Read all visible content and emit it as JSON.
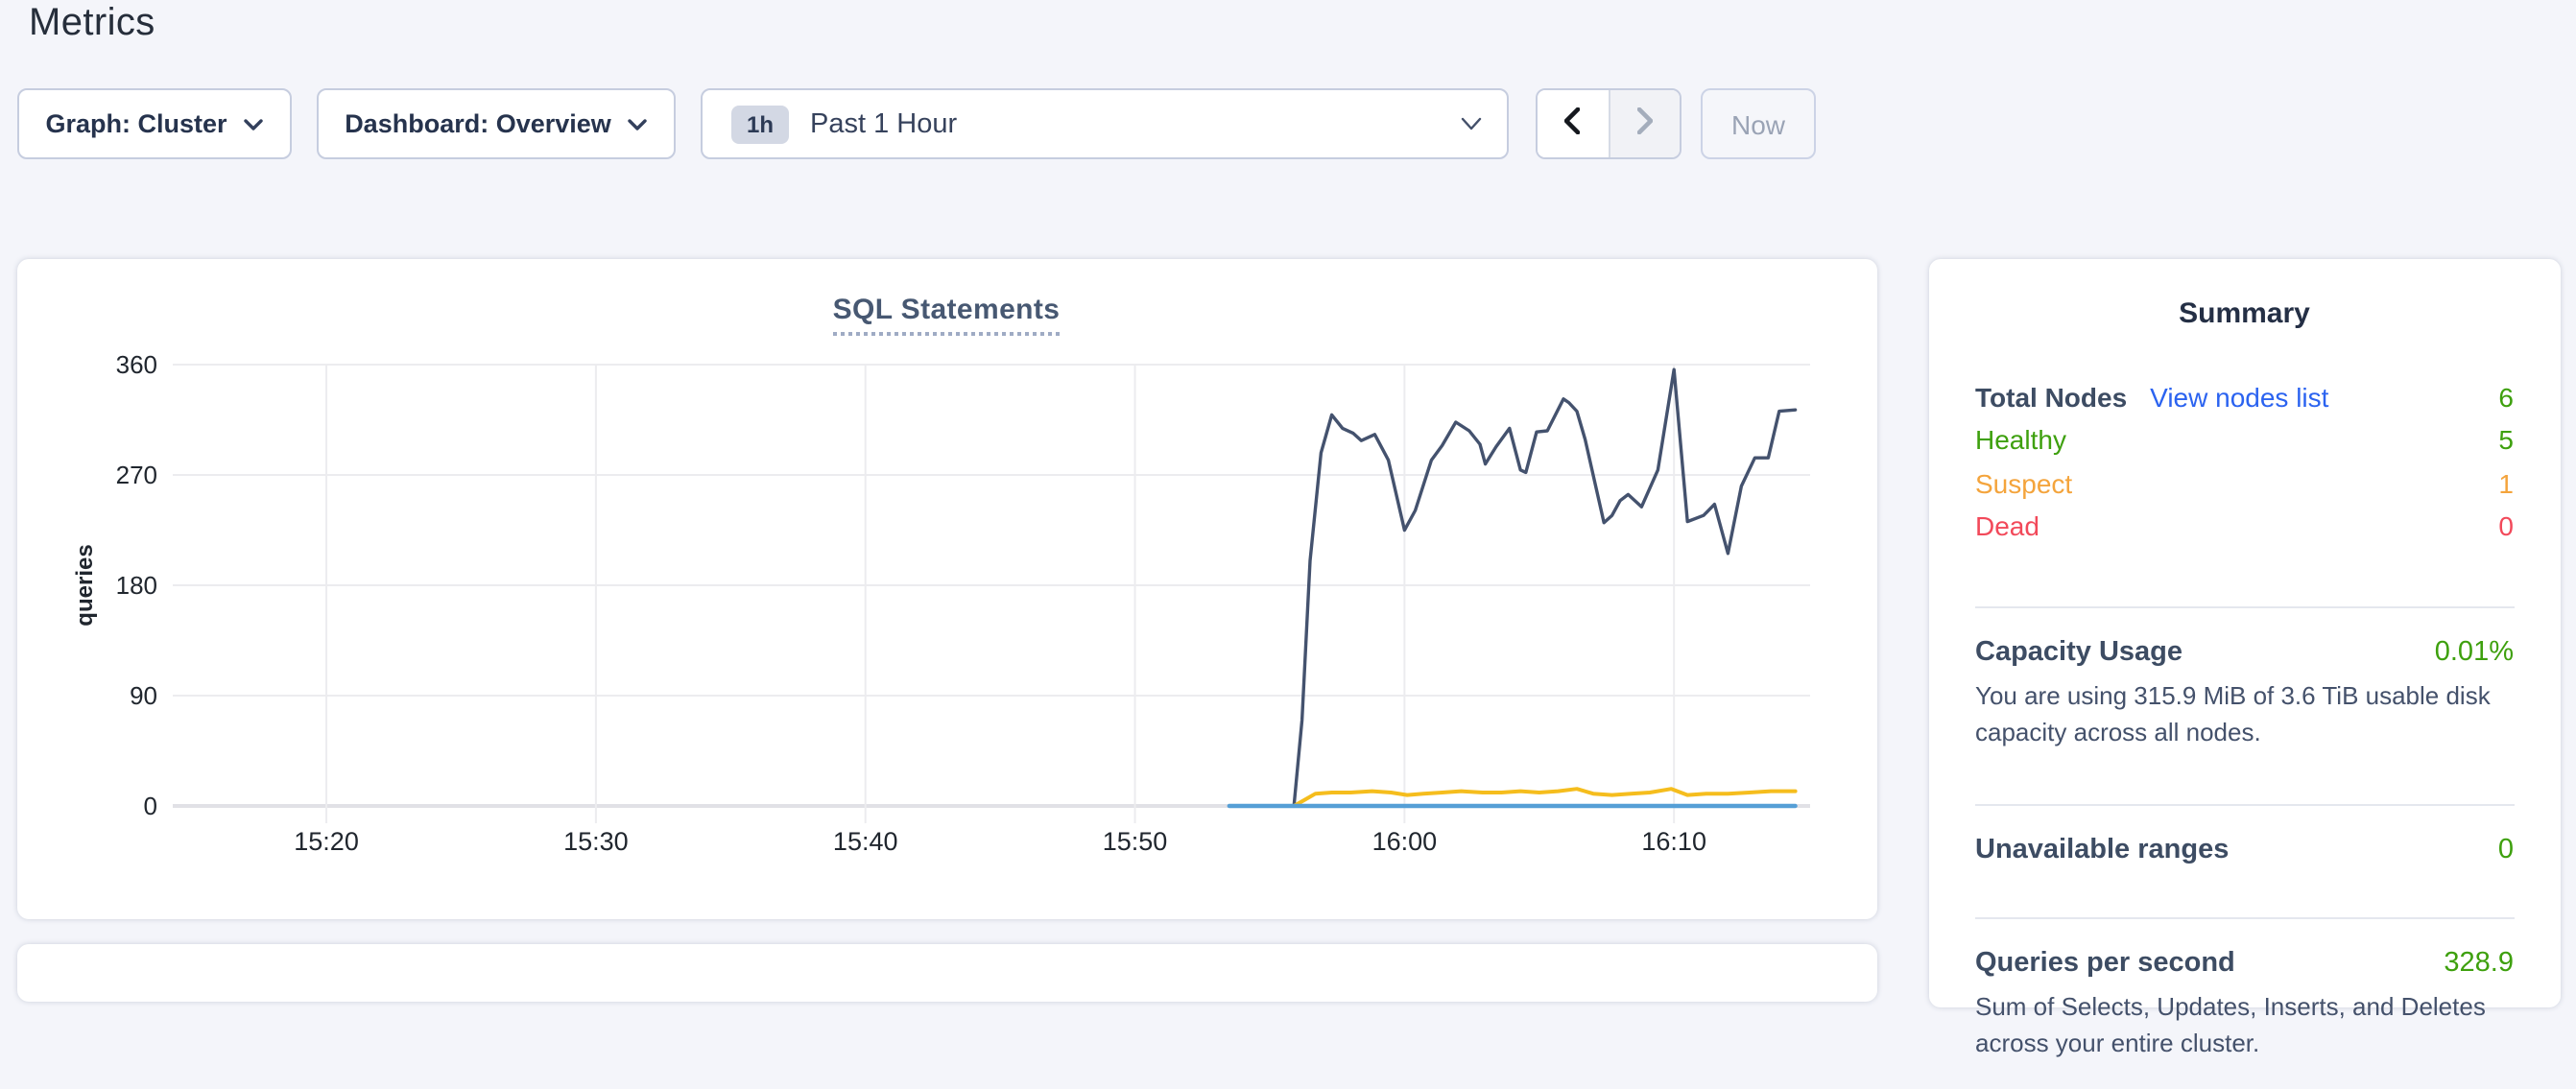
{
  "page_title": "Metrics",
  "toolbar": {
    "graph_label": "Graph: Cluster",
    "dashboard_label": "Dashboard: Overview",
    "range_badge": "1h",
    "range_label": "Past 1 Hour",
    "now_label": "Now"
  },
  "chart_data": {
    "type": "line",
    "title": "SQL Statements",
    "xlabel": "",
    "ylabel": "queries",
    "grid": true,
    "legend": "none",
    "ylim": [
      0,
      360
    ],
    "yticks": [
      0,
      90,
      180,
      270,
      360
    ],
    "xlim_minutes_after_1500": [
      14.3,
      75.05
    ],
    "xticks": [
      {
        "t": 20,
        "label": "15:20"
      },
      {
        "t": 30,
        "label": "15:30"
      },
      {
        "t": 40,
        "label": "15:40"
      },
      {
        "t": 50,
        "label": "15:50"
      },
      {
        "t": 60,
        "label": "16:00"
      },
      {
        "t": 70,
        "label": "16:10"
      }
    ],
    "series": [
      {
        "name": "series-navy",
        "color": "#44526e",
        "points": [
          [
            55.9,
            0
          ],
          [
            56.2,
            70
          ],
          [
            56.5,
            200
          ],
          [
            56.9,
            288
          ],
          [
            57.3,
            319
          ],
          [
            57.7,
            308
          ],
          [
            58.1,
            304
          ],
          [
            58.4,
            298
          ],
          [
            58.9,
            303
          ],
          [
            59.4,
            282
          ],
          [
            60.0,
            225
          ],
          [
            60.4,
            241
          ],
          [
            61.0,
            282
          ],
          [
            61.4,
            294
          ],
          [
            61.9,
            313
          ],
          [
            62.4,
            306
          ],
          [
            62.8,
            295
          ],
          [
            63.0,
            279
          ],
          [
            63.4,
            293
          ],
          [
            63.9,
            308
          ],
          [
            64.3,
            274
          ],
          [
            64.5,
            272
          ],
          [
            64.9,
            305
          ],
          [
            65.3,
            306
          ],
          [
            65.9,
            332
          ],
          [
            66.1,
            329
          ],
          [
            66.4,
            322
          ],
          [
            66.7,
            299
          ],
          [
            67.4,
            231
          ],
          [
            67.7,
            237
          ],
          [
            68.0,
            249
          ],
          [
            68.3,
            254
          ],
          [
            68.8,
            244
          ],
          [
            69.4,
            274
          ],
          [
            70.0,
            356
          ],
          [
            70.5,
            232
          ],
          [
            71.1,
            237
          ],
          [
            71.5,
            246
          ],
          [
            72.0,
            206
          ],
          [
            72.5,
            261
          ],
          [
            73.0,
            284
          ],
          [
            73.5,
            284
          ],
          [
            73.9,
            322
          ],
          [
            74.5,
            323
          ]
        ]
      },
      {
        "name": "series-gold",
        "color": "#f5bd1d",
        "points": [
          [
            55.9,
            0
          ],
          [
            56.3,
            5
          ],
          [
            56.7,
            10
          ],
          [
            57.3,
            11
          ],
          [
            58.0,
            11
          ],
          [
            58.8,
            12
          ],
          [
            59.5,
            11
          ],
          [
            60.1,
            9
          ],
          [
            60.7,
            10
          ],
          [
            61.4,
            11
          ],
          [
            62.1,
            12
          ],
          [
            62.9,
            11
          ],
          [
            63.6,
            11
          ],
          [
            64.3,
            12
          ],
          [
            65.0,
            11
          ],
          [
            65.7,
            12
          ],
          [
            66.4,
            14
          ],
          [
            67.0,
            10
          ],
          [
            67.7,
            9
          ],
          [
            68.4,
            10
          ],
          [
            69.1,
            11
          ],
          [
            69.9,
            14
          ],
          [
            70.5,
            9
          ],
          [
            71.2,
            10
          ],
          [
            72.0,
            10
          ],
          [
            72.8,
            11
          ],
          [
            73.6,
            12
          ],
          [
            74.5,
            12
          ]
        ]
      },
      {
        "name": "series-blue",
        "color": "#559fd6",
        "points": [
          [
            53.5,
            0
          ],
          [
            74.5,
            0
          ]
        ]
      }
    ]
  },
  "summary": {
    "title": "Summary",
    "nodes": {
      "label": "Total Nodes",
      "link": "View nodes list",
      "link_color": "#2b63f0",
      "value": "6",
      "value_color": "#3ea00e",
      "rows": [
        {
          "label": "Healthy",
          "value": "5",
          "color": "#3ea00e"
        },
        {
          "label": "Suspect",
          "value": "1",
          "color": "#f4a43c"
        },
        {
          "label": "Dead",
          "value": "0",
          "color": "#f2495a"
        }
      ]
    },
    "capacity": {
      "label": "Capacity Usage",
      "value": "0.01%",
      "value_color": "#3ea00e",
      "description": "You are using 315.9 MiB of 3.6 TiB usable disk capacity across all nodes."
    },
    "unavailable": {
      "label": "Unavailable ranges",
      "value": "0",
      "value_color": "#3ea00e"
    },
    "qps": {
      "label": "Queries per second",
      "value": "328.9",
      "value_color": "#3ea00e",
      "description": "Sum of Selects, Updates, Inserts, and Deletes across your entire cluster."
    }
  },
  "palette": {
    "page_bg": "#f4f5fa",
    "grid_line": "#ececef",
    "zero_line": "#e1e1e6",
    "axis_text": "#20262e"
  }
}
